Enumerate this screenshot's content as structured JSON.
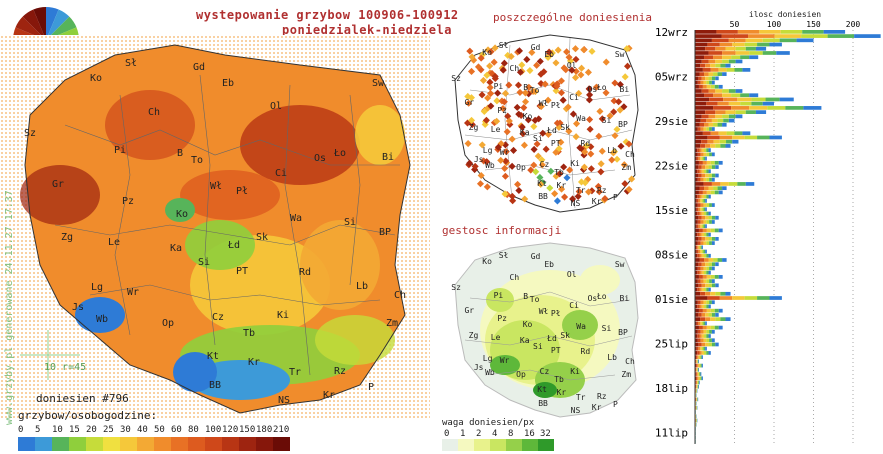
{
  "title_line1": "wystepowanie grzybow 100906-100912",
  "title_line2": "poniedzialek-niedziela",
  "right_title_top": "poszczególne doniesienia",
  "right_title_density": "gestosc informacji",
  "watermark_text": "www.grzyby.pl generowane 24.11.27 17:37",
  "scale_label": "10 r=45",
  "reports_label": "doniesien #796",
  "legend_title": "grzybow/osobogodzine:",
  "legend_values": [
    "0",
    "5",
    "10",
    "15",
    "20",
    "25",
    "30",
    "40",
    "50",
    "60",
    "80",
    "100",
    "120",
    "150",
    "180",
    "210"
  ],
  "legend_colors": [
    "#2e7bd6",
    "#3d9ad8",
    "#57b45a",
    "#8fcf3c",
    "#c6dc3a",
    "#f0e040",
    "#f5c83a",
    "#f3a934",
    "#f08c2c",
    "#e87125",
    "#dd5b1f",
    "#cf481a",
    "#b83514",
    "#9e2410",
    "#86170b",
    "#6a0c06"
  ],
  "density_title": "waga doniesien/px",
  "density_values": [
    "0",
    "1",
    "2",
    "4",
    "8",
    "16",
    "32"
  ],
  "density_colors": [
    "#e8f0e8",
    "#f5f9c0",
    "#e8f28c",
    "#c9e661",
    "#95d04a",
    "#5eb83a",
    "#2f9a2a"
  ],
  "regions_main": [
    "Sł",
    "Gd",
    "Ko",
    "Eb",
    "Sw",
    "Ch",
    "Ol",
    "Sz",
    "Pi",
    "B",
    "To",
    "Ci",
    "Os",
    "Ło",
    "Bi",
    "Gr",
    "Wł",
    "Pł",
    "Pz",
    "Ko",
    "Wa",
    "Si",
    "Zg",
    "Le",
    "Ka",
    "Łd",
    "Sk",
    "BP",
    "Si",
    "PT",
    "Rd",
    "Lb",
    "Lg",
    "Wr",
    "Ch",
    "Js",
    "Wb",
    "Op",
    "Cz",
    "Ki",
    "Zm",
    "Tb",
    "Kt",
    "Kr",
    "Tr",
    "Rz",
    "BB",
    "NS",
    "Kr",
    "P"
  ],
  "chart_data": {
    "type": "bar",
    "title": "ilosc doniesien",
    "x_ticks": [
      50,
      100,
      150,
      200
    ],
    "y_labels": [
      "12wrz",
      "05wrz",
      "29sie",
      "22sie",
      "15sie",
      "08sie",
      "01sie",
      "25lip",
      "18lip",
      "11lip"
    ],
    "values": [
      190,
      235,
      150,
      110,
      90,
      120,
      80,
      60,
      45,
      70,
      40,
      30,
      25,
      35,
      60,
      80,
      125,
      100,
      160,
      90,
      60,
      50,
      40,
      25,
      70,
      110,
      55,
      45,
      20,
      25,
      15,
      35,
      30,
      20,
      30,
      25,
      75,
      40,
      35,
      20,
      15,
      25,
      15,
      20,
      30,
      25,
      15,
      35,
      20,
      30,
      25,
      10,
      15,
      20,
      40,
      30,
      25,
      20,
      35,
      25,
      30,
      20,
      45,
      110,
      25,
      20,
      35,
      30,
      45,
      15,
      35,
      25,
      20,
      25,
      30,
      15,
      20,
      10,
      5,
      10,
      5,
      8,
      10,
      6,
      5,
      3,
      2,
      4,
      2,
      3,
      1,
      2,
      3,
      2,
      1,
      1,
      1,
      1
    ]
  }
}
